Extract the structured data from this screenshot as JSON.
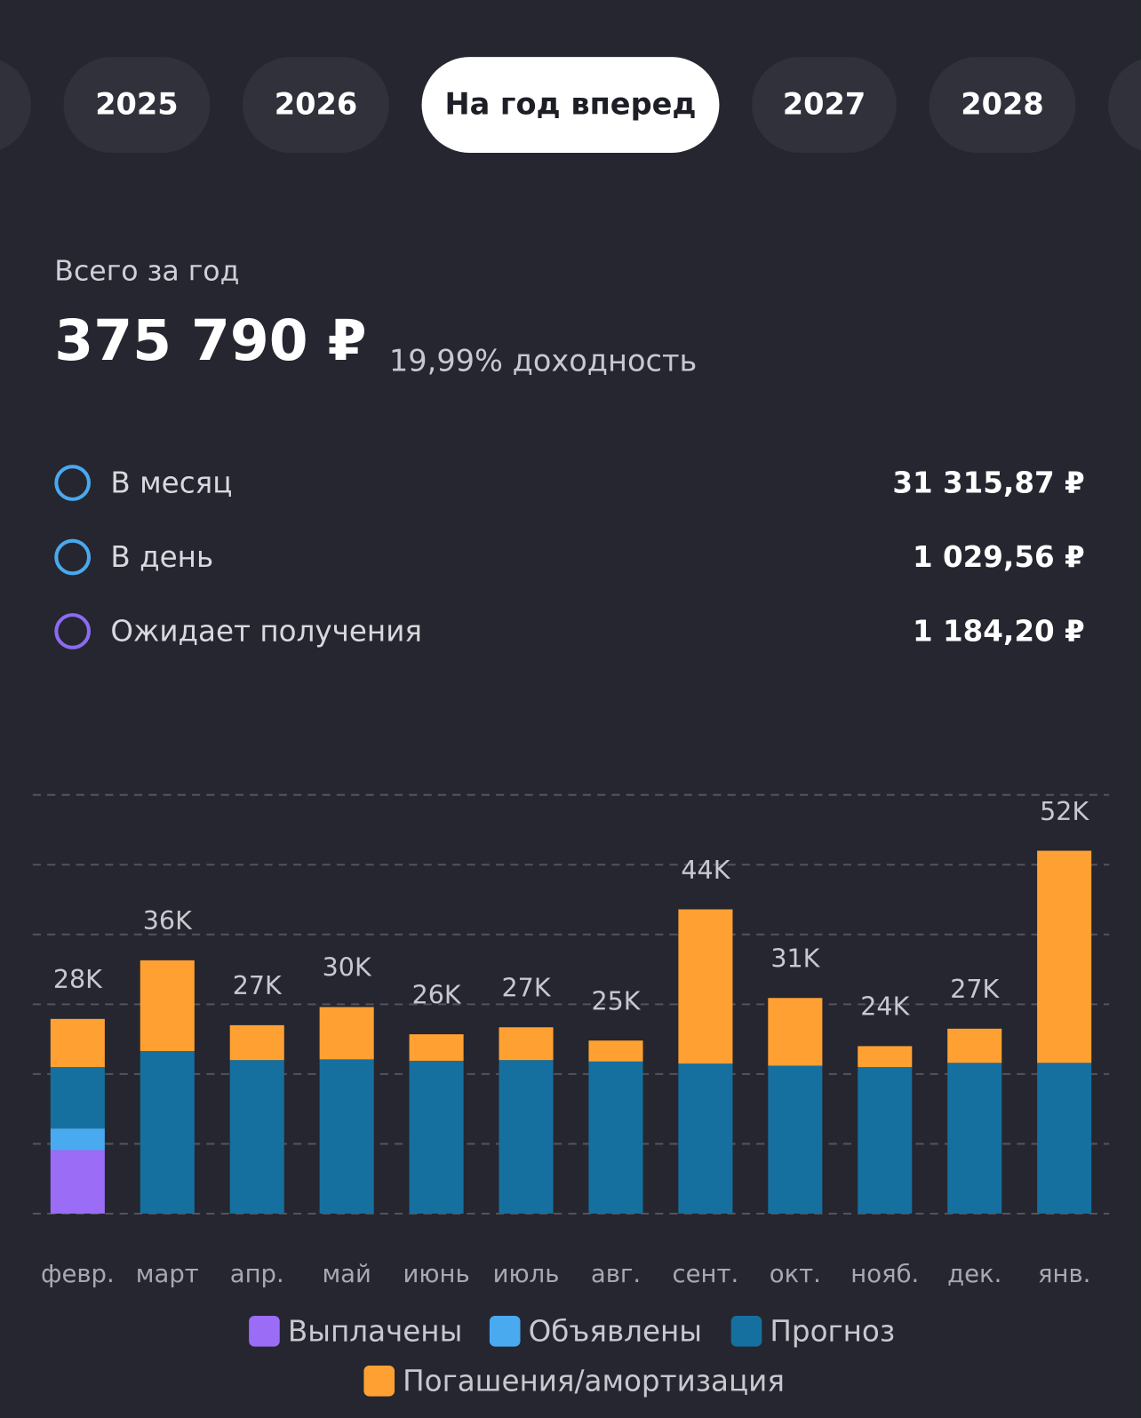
{
  "tabs": {
    "items": [
      "2025",
      "2026",
      "На год вперед",
      "2027",
      "2028"
    ],
    "active": 2
  },
  "summary": {
    "label": "Всего за год",
    "total": "375 790 ₽",
    "yield": "19,99% доходность"
  },
  "rows": [
    {
      "label": "В месяц",
      "value": "31 315,87 ₽",
      "color": "#4aa8ee"
    },
    {
      "label": "В день",
      "value": "1 029,56 ₽",
      "color": "#4aa8ee"
    },
    {
      "label": "Ожидает получения",
      "value": "1 184,20 ₽",
      "color": "#8a6cf0"
    }
  ],
  "chart_data": {
    "type": "stacked_bar",
    "categories": [
      "февр.",
      "март",
      "апр.",
      "май",
      "июнь",
      "июль",
      "авг.",
      "сент.",
      "окт.",
      "нояб.",
      "дек.",
      "янв."
    ],
    "series": [
      {
        "name": "Выплачены",
        "color": "#9b6cf5",
        "values": [
          9100,
          0,
          0,
          0,
          0,
          0,
          0,
          0,
          0,
          0,
          0,
          0
        ]
      },
      {
        "name": "Объявлены",
        "color": "#4aaaf0",
        "values": [
          3100,
          0,
          0,
          0,
          0,
          0,
          0,
          0,
          0,
          0,
          0,
          0
        ]
      },
      {
        "name": "Прогноз",
        "color": "#16709f",
        "values": [
          8800,
          23300,
          22000,
          22100,
          21900,
          22000,
          21800,
          21500,
          21200,
          21000,
          21600,
          21600
        ]
      },
      {
        "name": "Погашения/амортизация",
        "color": "#ffa132",
        "values": [
          6900,
          13000,
          5000,
          7500,
          3800,
          4700,
          3000,
          22100,
          9700,
          3000,
          4900,
          30400
        ]
      }
    ],
    "value_labels": [
      "28K",
      "36K",
      "27K",
      "30K",
      "26K",
      "27K",
      "25K",
      "44K",
      "31K",
      "24K",
      "27K",
      "52K"
    ],
    "ylim": [
      0,
      60000
    ],
    "yticks": [
      0,
      10000,
      20000,
      30000,
      40000,
      50000,
      60000
    ],
    "grid": true
  }
}
